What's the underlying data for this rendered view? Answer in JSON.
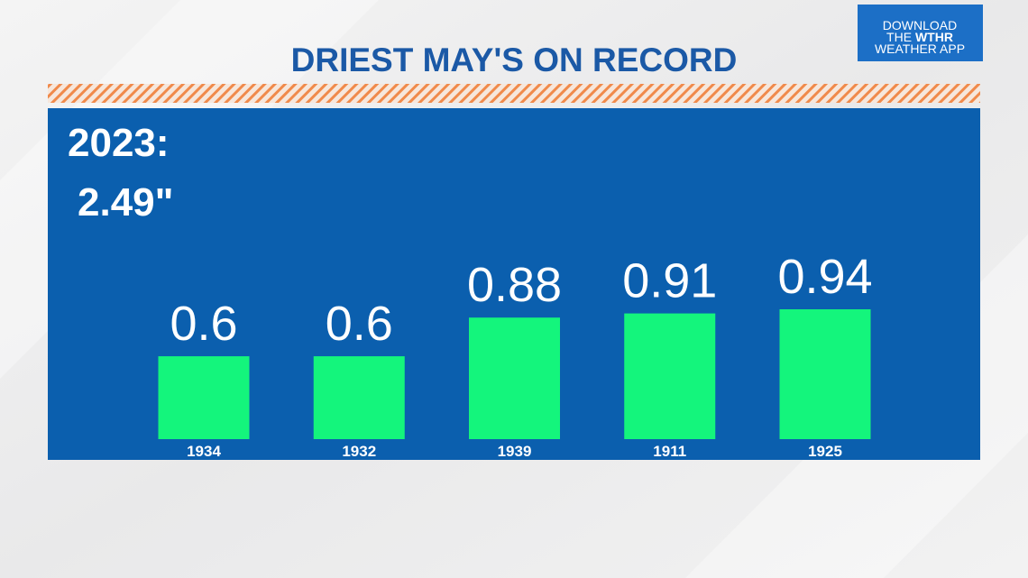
{
  "chart_data": {
    "type": "bar",
    "title": "DRIEST MAY'S ON RECORD",
    "annotations": [
      "2023:",
      "2.49\""
    ],
    "categories": [
      "1934",
      "1932",
      "1939",
      "1911",
      "1925"
    ],
    "values": [
      0.6,
      0.6,
      0.88,
      0.91,
      0.94
    ],
    "color": "#14f57c"
  },
  "logo": {
    "line1": "DOWNLOAD",
    "line2a": "THE",
    "line2b": "WTHR",
    "line3": "WEATHER APP"
  }
}
